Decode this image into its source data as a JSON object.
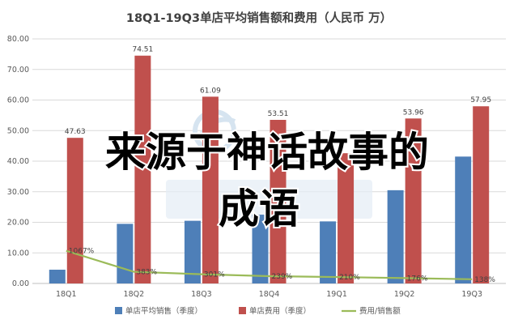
{
  "chart_data": {
    "type": "bar",
    "title": "18Q1-19Q3单店平均销售额和费用（人民币 万）",
    "categories": [
      "18Q1",
      "18Q2",
      "18Q3",
      "18Q4",
      "19Q1",
      "19Q2",
      "19Q3"
    ],
    "ylim": [
      0,
      80
    ],
    "yticks": [
      "0.00",
      "10.00",
      "20.00",
      "30.00",
      "40.00",
      "50.00",
      "60.00",
      "70.00",
      "80.00"
    ],
    "series": [
      {
        "name": "单店平均销售（季度）",
        "kind": "bar",
        "color": "#4e7fb8",
        "values": [
          4.5,
          19.5,
          20.5,
          22.5,
          20.3,
          30.5,
          41.5
        ]
      },
      {
        "name": "单店费用（季度）",
        "kind": "bar",
        "color": "#c0504d",
        "values": [
          47.63,
          74.51,
          61.09,
          53.51,
          42.6,
          53.96,
          57.95
        ],
        "labels": [
          "47.63",
          "74.51",
          "61.09",
          "53.51",
          "",
          "53.96",
          "57.95"
        ]
      },
      {
        "name": "费用/销售额",
        "kind": "line",
        "color": "#9bbb59",
        "values": [
          10.67,
          3.83,
          3.01,
          2.39,
          2.1,
          1.76,
          1.38
        ],
        "labels": [
          "1067%",
          "383%",
          "301%",
          "239%",
          "210%",
          "176%",
          "138%"
        ]
      }
    ],
    "legend_position": "bottom",
    "grid": true
  },
  "overlay": {
    "line1": "来源于神话故事的",
    "line2": "成语"
  }
}
